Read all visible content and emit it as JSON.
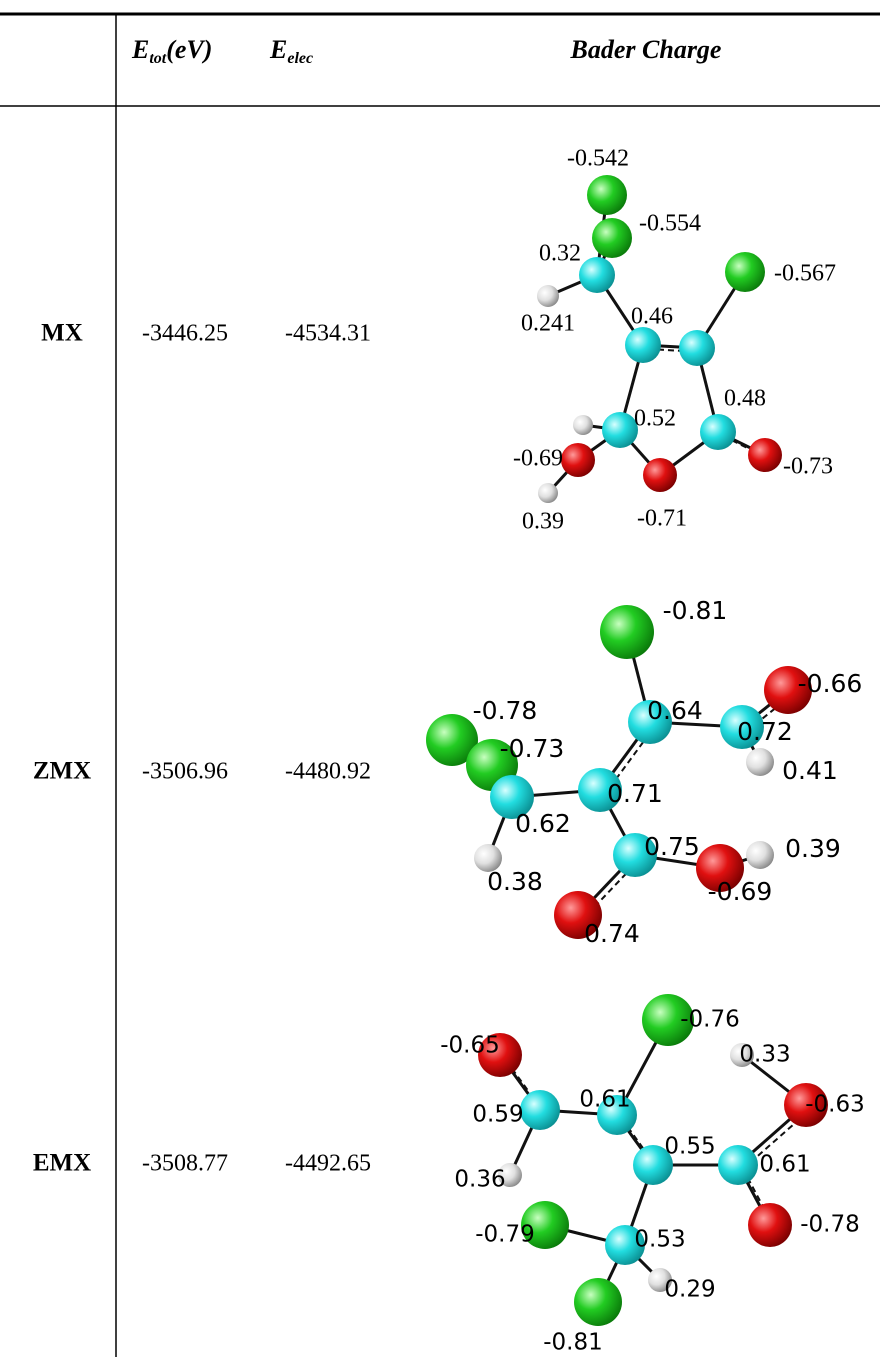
{
  "table": {
    "header": {
      "etot": {
        "symbol": "E",
        "subscript": "tot",
        "unit": "(eV)"
      },
      "eelec": {
        "symbol": "E",
        "subscript": "elec"
      },
      "bader": "Bader Charge"
    },
    "rows": [
      {
        "name": "MX",
        "etot": -3446.25,
        "eelec": -4534.31,
        "charges": [
          -0.542,
          -0.554,
          0.32,
          -0.567,
          0.241,
          0.46,
          0.48,
          0.52,
          -0.69,
          -0.73,
          0.39,
          -0.71
        ]
      },
      {
        "name": "ZMX",
        "etot": -3506.96,
        "eelec": -4480.92,
        "charges": [
          -0.81,
          -0.66,
          0.64,
          0.72,
          0.41,
          -0.78,
          -0.73,
          0.71,
          0.62,
          0.75,
          0.39,
          -0.69,
          0.38,
          0.74
        ]
      },
      {
        "name": "EMX",
        "etot": -3508.77,
        "eelec": -4492.65,
        "charges": [
          -0.76,
          -0.65,
          0.33,
          0.61,
          -0.63,
          0.59,
          0.55,
          0.61,
          0.36,
          -0.79,
          -0.78,
          0.53,
          0.29,
          -0.81
        ]
      }
    ]
  }
}
